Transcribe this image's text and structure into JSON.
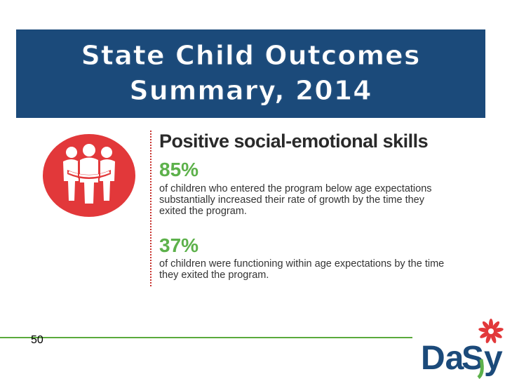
{
  "banner": {
    "title_line1": "State Child Outcomes",
    "title_line2": "Summary, 2014"
  },
  "content": {
    "heading": "Positive social-emotional skills",
    "stat1": {
      "value": "85%",
      "description": "of children who entered the program below age expectations substantially increased their rate of growth by the time they exited the program."
    },
    "stat2": {
      "value": "37%",
      "description": "of children were functioning within age expectations by the time they exited the program."
    }
  },
  "icon": "group-hug-icon",
  "footer": {
    "page_number": "50",
    "logo": {
      "part1": "Da",
      "part2": "Sy"
    }
  },
  "colors": {
    "banner": "#1b4a7a",
    "icon_circle": "#e2383a",
    "stat_green": "#5db14b",
    "footer_line": "#5aaa3c",
    "logo_blue": "#1b4a7a",
    "logo_green": "#5db14b",
    "flower_red": "#e2383a"
  }
}
